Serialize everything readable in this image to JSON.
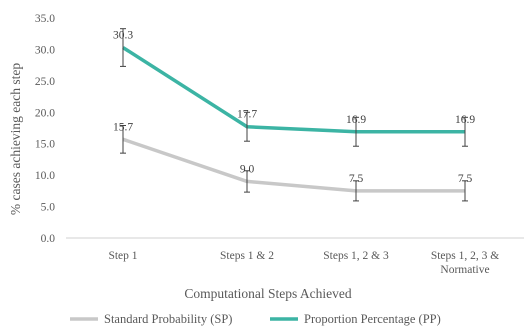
{
  "chart_data": {
    "type": "line",
    "title": "",
    "xlabel": "Computational Steps Achieved",
    "ylabel": "% cases achieving each step",
    "categories": [
      "Step 1",
      "Steps 1 & 2",
      "Steps 1, 2 & 3",
      "Steps 1, 2, 3 & Normative"
    ],
    "category_lines": [
      [
        "Step 1"
      ],
      [
        "Steps 1 & 2"
      ],
      [
        "Steps 1, 2 & 3"
      ],
      [
        "Steps 1, 2, 3 &",
        "Normative"
      ]
    ],
    "ylim": [
      0,
      35
    ],
    "yticks": [
      "0.0",
      "5.0",
      "10.0",
      "15.0",
      "20.0",
      "25.0",
      "30.0",
      "35.0"
    ],
    "grid": false,
    "legend_position": "bottom",
    "series": [
      {
        "name": "Standard Probability (SP)",
        "color": "#c8c8c8",
        "values": [
          15.7,
          9.0,
          7.5,
          7.5
        ],
        "labels": [
          "15.7",
          "9.0",
          "7.5",
          "7.5"
        ],
        "error": [
          2.2,
          1.7,
          1.6,
          1.6
        ]
      },
      {
        "name": "Proportion Percentage (PP)",
        "color": "#3cb4a4",
        "values": [
          30.3,
          17.7,
          16.9,
          16.9
        ],
        "labels": [
          "30.3",
          "17.7",
          "16.9",
          "16.9"
        ],
        "error": [
          3.0,
          2.3,
          2.3,
          2.3
        ]
      }
    ]
  }
}
